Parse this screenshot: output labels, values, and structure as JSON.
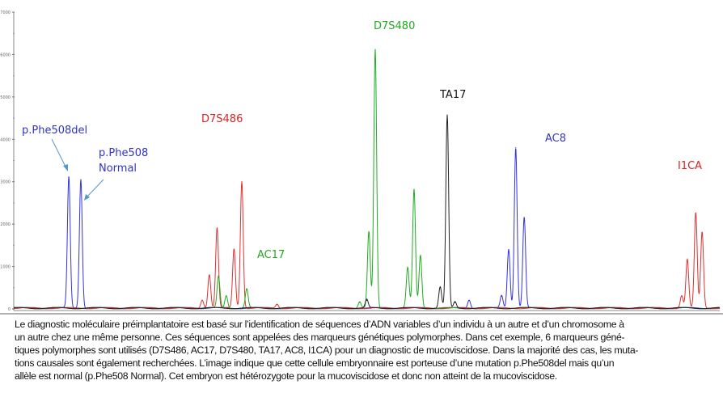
{
  "chart_data": {
    "type": "line",
    "title": "",
    "xlabel": "",
    "ylabel": "",
    "xlim": [
      0,
      100
    ],
    "ylim": [
      0,
      7000
    ],
    "yticks": [
      0,
      1000,
      2000,
      3000,
      4000,
      5000,
      6000,
      7000
    ],
    "ytick_labels": [
      "0",
      "1000",
      "2000",
      "3000",
      "4000",
      "5000",
      "6000",
      "7000"
    ],
    "grid": false,
    "series": [
      {
        "name": "blue",
        "color": "#3333dd",
        "peaks": [
          [
            7.8,
            3100
          ],
          [
            9.5,
            3050
          ],
          [
            64.5,
            200
          ],
          [
            69.1,
            300
          ],
          [
            70.1,
            1400
          ],
          [
            71.1,
            3800
          ],
          [
            72.3,
            2150
          ]
        ]
      },
      {
        "name": "red",
        "color": "#e03030",
        "peaks": [
          [
            26.7,
            200
          ],
          [
            27.7,
            800
          ],
          [
            28.8,
            1900
          ],
          [
            31.2,
            1400
          ],
          [
            32.3,
            3000
          ],
          [
            37.3,
            100
          ],
          [
            94.6,
            300
          ],
          [
            95.4,
            1150
          ],
          [
            96.6,
            2250
          ],
          [
            97.5,
            1800
          ]
        ]
      },
      {
        "name": "green",
        "color": "#22aa22",
        "peaks": [
          [
            29.0,
            750
          ],
          [
            30.1,
            300
          ],
          [
            33.0,
            450
          ],
          [
            49.0,
            150
          ],
          [
            50.3,
            1800
          ],
          [
            51.2,
            6100
          ],
          [
            55.8,
            950
          ],
          [
            56.7,
            2800
          ],
          [
            57.6,
            1250
          ]
        ]
      },
      {
        "name": "black",
        "color": "#222222",
        "peaks": [
          [
            50.0,
            200
          ],
          [
            60.4,
            500
          ],
          [
            61.4,
            4550
          ],
          [
            62.5,
            150
          ]
        ]
      }
    ],
    "annotations": [
      {
        "text": "p.Phe508del",
        "color": "#3333cc",
        "series": "blue"
      },
      {
        "text": "p.Phe508",
        "color": "#3333cc",
        "series": "blue"
      },
      {
        "text": "Normal",
        "color": "#3333cc",
        "series": "blue"
      },
      {
        "text": "D7S486",
        "color": "#dd2222",
        "series": "red"
      },
      {
        "text": "AC17",
        "color": "#22aa22",
        "series": "green"
      },
      {
        "text": "D7S480",
        "color": "#22aa22",
        "series": "green"
      },
      {
        "text": "TA17",
        "color": "#111111",
        "series": "black"
      },
      {
        "text": "AC8",
        "color": "#3333cc",
        "series": "blue"
      },
      {
        "text": "I1CA",
        "color": "#dd2222",
        "series": "red"
      }
    ]
  },
  "caption": [
    "Le diagnostic moléculaire préimplantatoire est basé sur l’identification de séquences d’ADN variables d’un individu à un autre et d’un chromosome à",
    "un autre chez une même personne. Ces séquences sont appelées des marqueurs génétiques polymorphes. Dans cet exemple, 6 marqueurs géné-",
    "tiques polymorphes sont utilisés (D7S486, AC17, D7S480, TA17, AC8, I1CA) pour un diagnostic de mucoviscidose. Dans la majorité des cas, les muta-",
    "tions causales sont également recherchées. L’image indique que cette cellule embryonnaire est porteuse d’une mutation p.Phe508del mais qu’un",
    "allèle est normal (p.Phe508 Normal). Cet embryon est hétérozygote pour la mucoviscidose et donc non atteint de la mucoviscidose."
  ]
}
